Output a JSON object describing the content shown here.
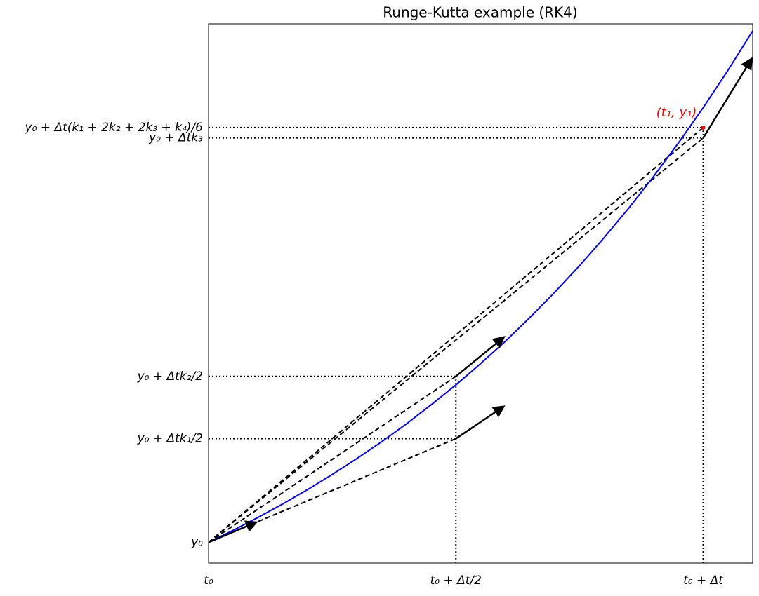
{
  "chart_data": {
    "type": "line",
    "title": "Runge-Kutta example (RK4)",
    "xlim": [
      0,
      1.1
    ],
    "ylim": [
      0.9,
      3.5
    ],
    "xticks": [
      {
        "value": 0,
        "label": "t₀"
      },
      {
        "value": 0.5,
        "label": "t₀ + Δt/2"
      },
      {
        "value": 1,
        "label": "t₀ + Δt"
      }
    ],
    "yticks": [
      {
        "value": 1,
        "label": "y₀"
      },
      {
        "value": 1.5,
        "label": "y₀ + Δtk₁/2"
      },
      {
        "value": 1.8,
        "label": "y₀ + Δtk₂/2"
      },
      {
        "value": 2.95,
        "label": "y₀ + Δtk₃"
      },
      {
        "value": 3.0,
        "label": "y₀ + Δt(k₁ + 2k₂ + 2k₃ + k₄)/6"
      }
    ],
    "x": [
      0,
      0.05,
      0.1,
      0.15,
      0.2,
      0.25,
      0.3,
      0.35,
      0.4,
      0.45,
      0.5,
      0.55,
      0.6,
      0.65,
      0.7,
      0.75,
      0.8,
      0.85,
      0.9,
      0.95,
      1.0,
      1.05,
      1.1
    ],
    "series": [
      {
        "color": "#0000ff",
        "values": [
          1,
          1.058,
          1.12,
          1.185,
          1.254,
          1.327,
          1.404,
          1.485,
          1.571,
          1.663,
          1.759,
          1.862,
          1.969,
          2.085,
          2.206,
          2.334,
          2.47,
          2.613,
          2.765,
          2.926,
          3.096,
          3.276,
          3.466
        ]
      }
    ],
    "arrows": [
      {
        "x": [
          0,
          0.1
        ],
        "y": [
          1,
          1.1
        ]
      },
      {
        "x": [
          0.5,
          0.6
        ],
        "y": [
          1.5,
          1.66
        ]
      },
      {
        "x": [
          0.5,
          0.6
        ],
        "y": [
          1.8,
          1.995
        ]
      },
      {
        "x": [
          1,
          1.1
        ],
        "y": [
          2.95,
          3.34
        ]
      }
    ],
    "dashed": [
      {
        "x": [
          0,
          0.5
        ],
        "y": [
          1,
          1.5
        ]
      },
      {
        "x": [
          0,
          0.5
        ],
        "y": [
          1,
          1.8
        ]
      },
      {
        "x": [
          0,
          1
        ],
        "y": [
          1,
          2.95
        ]
      },
      {
        "x": [
          0,
          1
        ],
        "y": [
          1,
          3.0
        ]
      }
    ],
    "guides": [
      {
        "x": [
          0,
          0.5
        ],
        "y": [
          1.5,
          1.5
        ]
      },
      {
        "x": [
          0,
          0.5
        ],
        "y": [
          1.8,
          1.8
        ]
      },
      {
        "x": [
          0,
          1
        ],
        "y": [
          2.95,
          2.95
        ]
      },
      {
        "x": [
          0,
          1
        ],
        "y": [
          3.0,
          3.0
        ]
      },
      {
        "x": [
          0.5,
          0.5
        ],
        "y": [
          0.9,
          1.8
        ]
      },
      {
        "x": [
          1,
          1
        ],
        "y": [
          0.9,
          3.0
        ]
      }
    ],
    "point": {
      "x": 1,
      "y": 3.0,
      "label": "(t₁, y₁)",
      "color": "#ff0000"
    }
  }
}
